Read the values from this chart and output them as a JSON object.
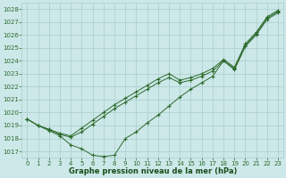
{
  "background_color": "#cce8e8",
  "grid_color": "#aacccc",
  "line_color": "#2d6a2d",
  "marker": "+",
  "xlabel": "Graphe pression niveau de la mer (hPa)",
  "xlabel_color": "#1a4d1a",
  "ylim": [
    1016.5,
    1028.5
  ],
  "xlim": [
    -0.5,
    23.5
  ],
  "xticks": [
    0,
    1,
    2,
    3,
    4,
    5,
    6,
    7,
    8,
    9,
    10,
    11,
    12,
    13,
    14,
    15,
    16,
    17,
    18,
    19,
    20,
    21,
    22,
    23
  ],
  "yticks": [
    1017,
    1018,
    1019,
    1020,
    1021,
    1022,
    1023,
    1024,
    1025,
    1026,
    1027,
    1028
  ],
  "series": [
    {
      "x": [
        0,
        1,
        2,
        3,
        4,
        5,
        6,
        7,
        8,
        9,
        10,
        11,
        12,
        13,
        14,
        15,
        16,
        17,
        18,
        19,
        20,
        21,
        22,
        23
      ],
      "y": [
        1019.5,
        1019.0,
        1018.6,
        1018.2,
        1017.5,
        1017.2,
        1016.7,
        1016.6,
        1016.7,
        1018.0,
        1018.5,
        1019.2,
        1019.8,
        1020.5,
        1021.2,
        1021.8,
        1022.3,
        1022.8,
        1024.0,
        1023.3,
        1025.1,
        1026.0,
        1027.2,
        1027.7
      ]
    },
    {
      "x": [
        0,
        1,
        2,
        3,
        4,
        5,
        6,
        7,
        8,
        9,
        10,
        11,
        12,
        13,
        14,
        15,
        16,
        17,
        18,
        19,
        20,
        21,
        22,
        23
      ],
      "y": [
        1019.5,
        1019.0,
        1018.7,
        1018.3,
        1018.1,
        1018.5,
        1019.1,
        1019.7,
        1020.3,
        1020.8,
        1021.3,
        1021.8,
        1022.3,
        1022.7,
        1022.3,
        1022.5,
        1022.8,
        1023.2,
        1024.0,
        1023.4,
        1025.2,
        1026.1,
        1027.3,
        1027.8
      ]
    },
    {
      "x": [
        0,
        1,
        2,
        3,
        4,
        5,
        6,
        7,
        8,
        9,
        10,
        11,
        12,
        13,
        14,
        15,
        16,
        17,
        18,
        19,
        20,
        21,
        22,
        23
      ],
      "y": [
        1019.5,
        1019.0,
        1018.7,
        1018.4,
        1018.2,
        1018.8,
        1019.4,
        1020.0,
        1020.6,
        1021.1,
        1021.6,
        1022.1,
        1022.6,
        1023.0,
        1022.5,
        1022.7,
        1023.0,
        1023.4,
        1024.1,
        1023.5,
        1025.3,
        1026.2,
        1027.4,
        1027.9
      ]
    }
  ],
  "figsize": [
    3.2,
    2.0
  ],
  "dpi": 100
}
